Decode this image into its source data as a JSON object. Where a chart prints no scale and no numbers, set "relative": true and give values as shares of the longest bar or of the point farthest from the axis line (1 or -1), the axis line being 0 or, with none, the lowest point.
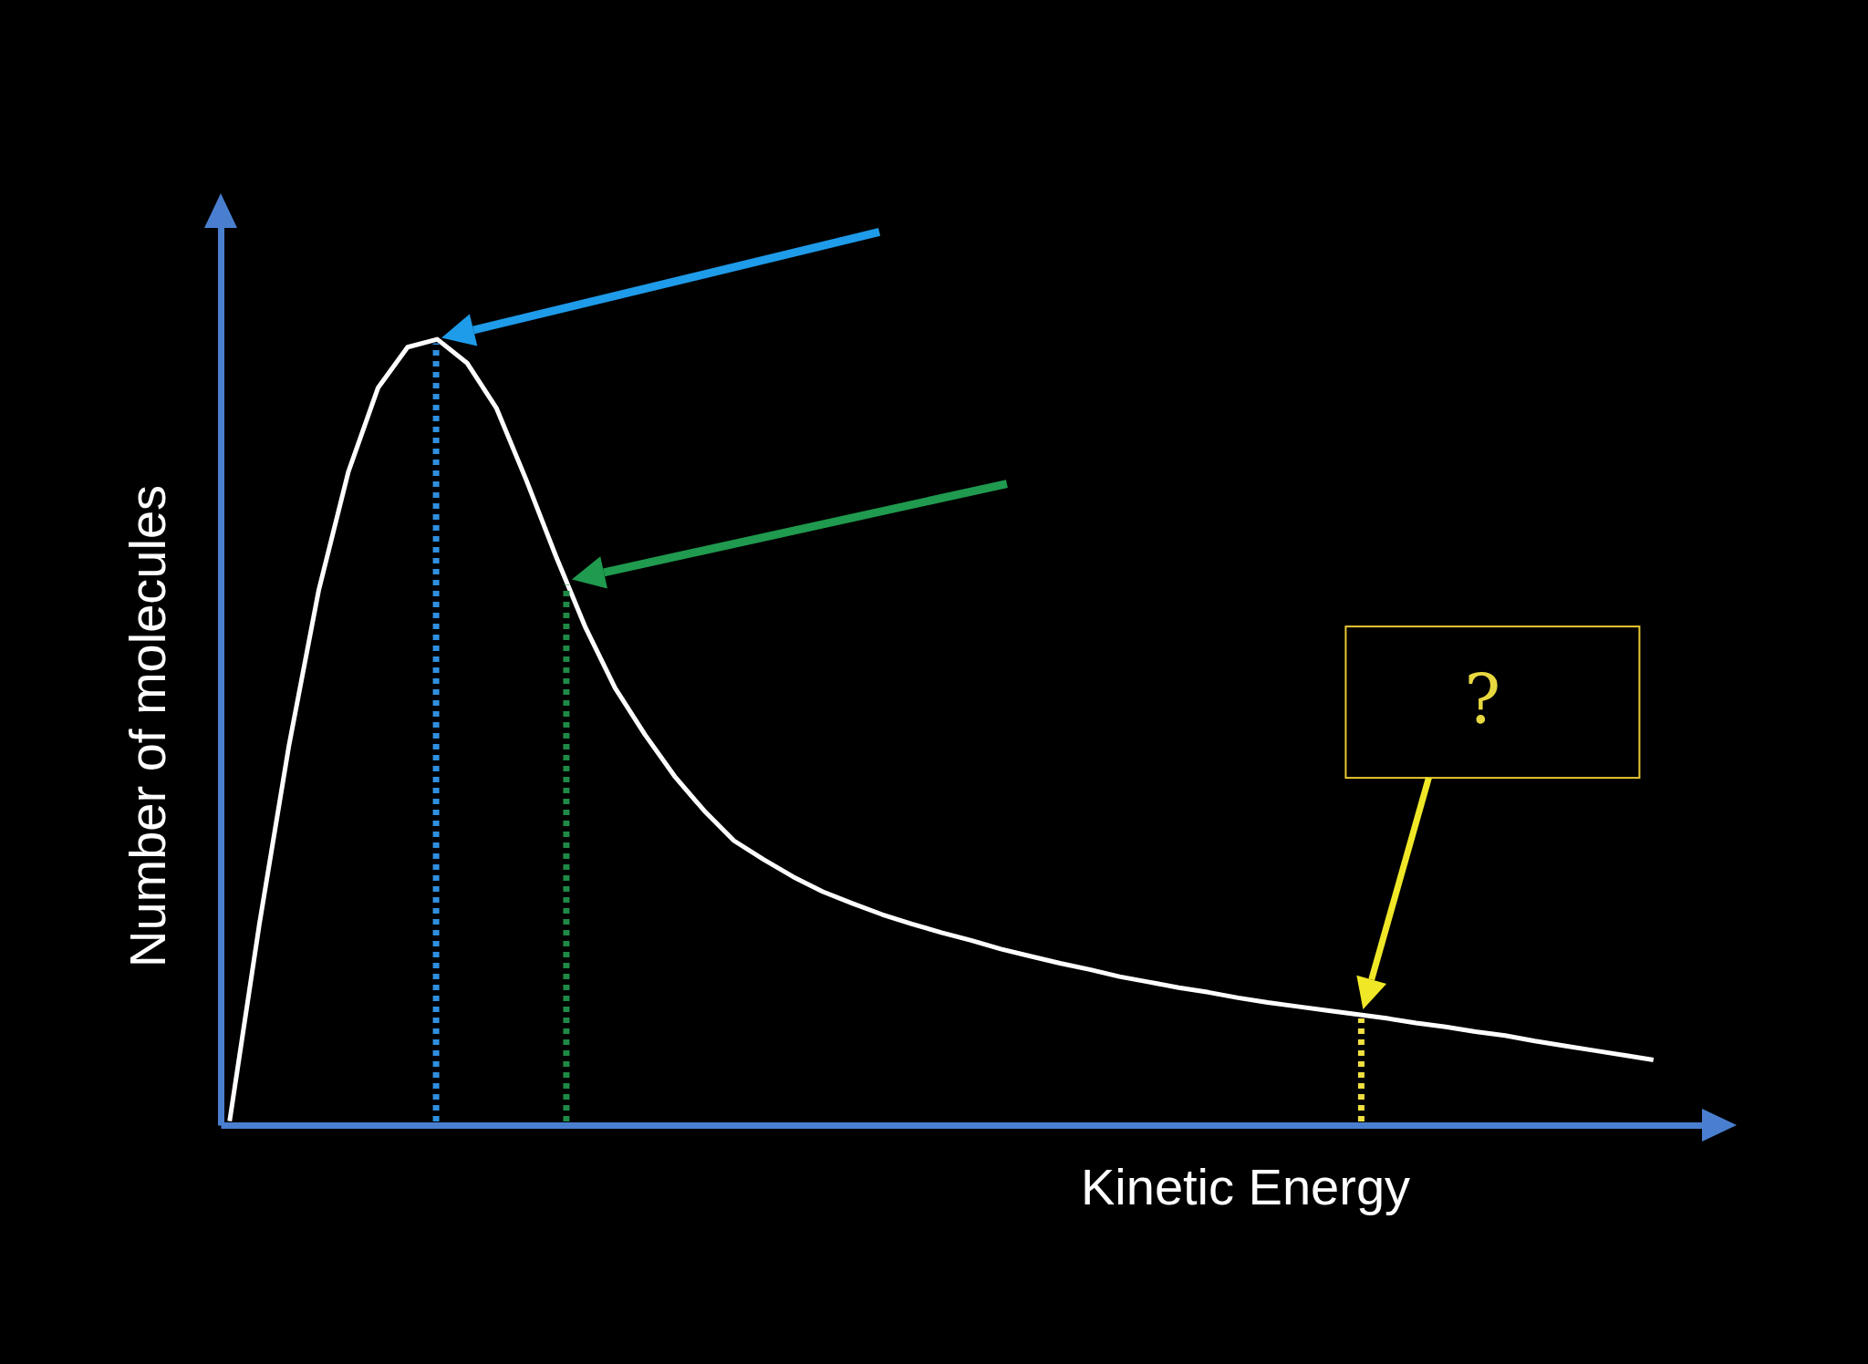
{
  "chart_data": {
    "type": "line",
    "relative": true,
    "xlabel": "Kinetic Energy",
    "ylabel": "Number of molecules",
    "categories": [
      null,
      null,
      null,
      null,
      null,
      null,
      null,
      null,
      null,
      null,
      null,
      null,
      null,
      null,
      null,
      null,
      null,
      null,
      null,
      null,
      null,
      null,
      null,
      null,
      null,
      null,
      null,
      null,
      null,
      null,
      null,
      null,
      null,
      null,
      null,
      null,
      null,
      null,
      null,
      null,
      null,
      null,
      null,
      null,
      null,
      null,
      null,
      null,
      null
    ],
    "series": [
      {
        "color": "#ffffff",
        "values": [
          0.005,
          0.255,
          0.483,
          0.68,
          0.831,
          0.938,
          0.99,
          1,
          0.97,
          0.912,
          0.821,
          0.724,
          0.633,
          0.556,
          0.497,
          0.444,
          0.4,
          0.362,
          0.338,
          0.316,
          0.297,
          0.282,
          0.268,
          0.256,
          0.245,
          0.235,
          0.224,
          0.215,
          0.206,
          0.198,
          0.189,
          0.182,
          0.175,
          0.169,
          0.162,
          0.156,
          0.151,
          0.146,
          0.141,
          0.136,
          0.13,
          0.125,
          0.119,
          0.114,
          0.107,
          0.101,
          0.095,
          0.089,
          0.083
        ]
      }
    ],
    "annotations": [
      "?"
    ]
  }
}
